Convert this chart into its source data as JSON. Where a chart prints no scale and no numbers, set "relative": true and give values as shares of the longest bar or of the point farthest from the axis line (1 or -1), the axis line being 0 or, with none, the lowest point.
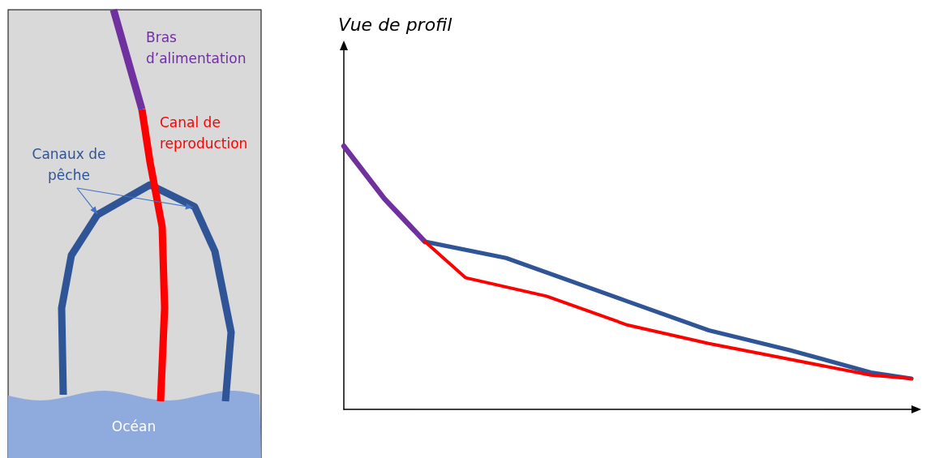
{
  "chart_data": {
    "type": "line",
    "title": "Vue de profil",
    "relative": true,
    "grid": false,
    "marker": "none",
    "line_style": "solid",
    "categories": [
      null,
      null,
      null,
      null,
      null,
      null,
      null,
      null,
      null,
      null,
      null,
      null,
      null,
      null,
      null
    ],
    "series": [
      {
        "color": "#7030a0",
        "values": [
          1,
          0.8,
          0.637,
          null,
          null,
          null,
          null,
          null,
          null,
          null,
          null,
          null,
          null,
          null,
          null
        ]
      },
      {
        "color": "#2f5597",
        "values": [
          null,
          null,
          0.637,
          null,
          0.575,
          null,
          null,
          0.41,
          null,
          0.3,
          null,
          0.225,
          null,
          0.14,
          0.117
        ]
      },
      {
        "color": "#ff0000",
        "values": [
          null,
          null,
          0.637,
          0.5,
          null,
          0.43,
          null,
          0.32,
          null,
          0.25,
          null,
          0.19,
          null,
          0.13,
          0.117
        ]
      }
    ],
    "annotations": [
      "Bras d’alimentation",
      "Canal de reproduction",
      "Canaux de pêche",
      "Océan"
    ]
  }
}
